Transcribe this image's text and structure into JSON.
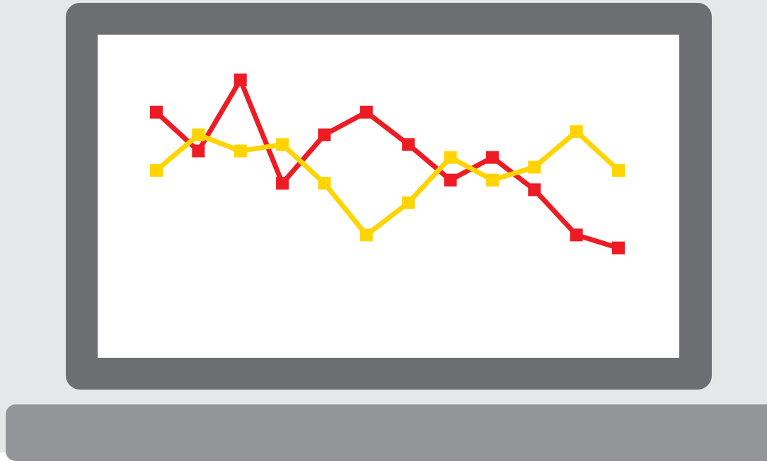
{
  "colors": {
    "background": "#e6e7e8",
    "bezel": "#6d6e71",
    "screen": "#ffffff",
    "base": "#939598",
    "series_red": "#ed1c24",
    "series_yellow": "#ffd400"
  },
  "chart_data": {
    "type": "line",
    "title": "",
    "xlabel": "",
    "ylabel": "",
    "axes_visible": false,
    "grid": false,
    "legend": false,
    "marker": "square",
    "x": [
      1,
      2,
      3,
      4,
      5,
      6,
      7,
      8,
      9,
      10,
      11,
      12
    ],
    "ylim": [
      0,
      10
    ],
    "series": [
      {
        "color": "#ed1c24",
        "values": [
          7.6,
          6.4,
          8.6,
          5.4,
          6.9,
          7.6,
          6.6,
          5.5,
          6.2,
          5.2,
          3.8,
          3.4
        ]
      },
      {
        "color": "#ffd400",
        "values": [
          5.8,
          6.9,
          6.4,
          6.6,
          5.4,
          3.8,
          4.8,
          6.2,
          5.5,
          5.9,
          7.0,
          5.8
        ]
      }
    ]
  }
}
